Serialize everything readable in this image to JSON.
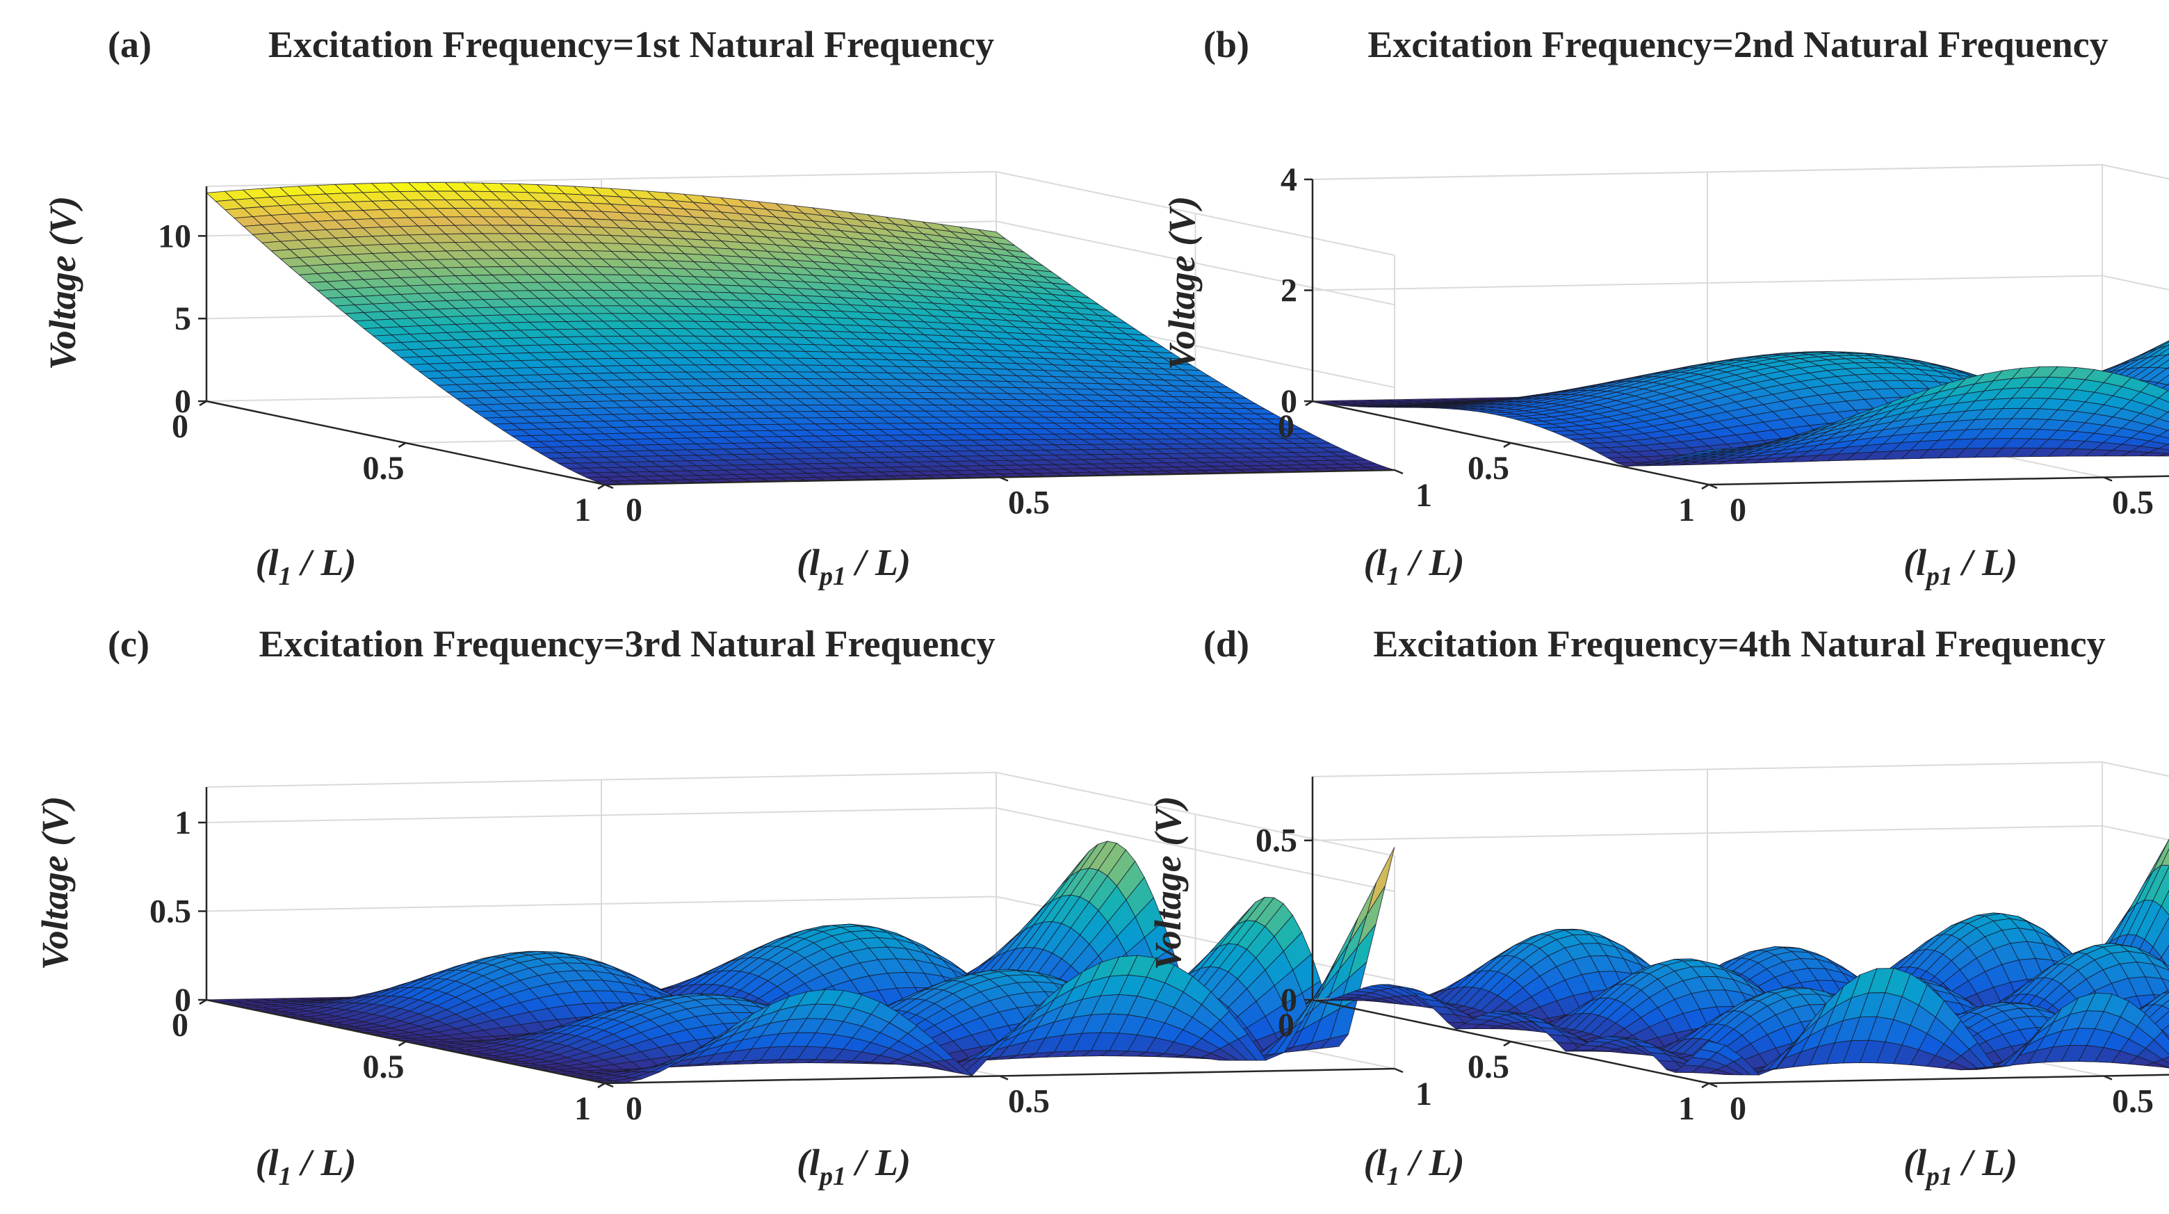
{
  "chart_data": [
    {
      "type": "surface3d",
      "panel": "(a)",
      "title": "Excitation Frequency=1st Natural Frequency",
      "zlabel": "Voltage (V)",
      "xlabel": {
        "main": "(l",
        "sub": "1",
        "rest": " / L)"
      },
      "ylabel": {
        "main": "(l",
        "sub": "p1",
        "rest": " / L)"
      },
      "x_ticks": [
        "0",
        "0.5",
        "1"
      ],
      "y_ticks": [
        "0",
        "0.5",
        "1"
      ],
      "z_ticks": [
        "0",
        "5",
        "10"
      ],
      "z_tick_values": [
        0,
        5,
        10
      ],
      "zlim": [
        0,
        13
      ],
      "peak_voltage": 13,
      "mode": 1,
      "grid_n": 44
    },
    {
      "type": "surface3d",
      "panel": "(b)",
      "title": "Excitation Frequency=2nd Natural Frequency",
      "zlabel": "Voltage (V)",
      "xlabel": {
        "main": "(l",
        "sub": "1",
        "rest": " / L)"
      },
      "ylabel": {
        "main": "(l",
        "sub": "p1",
        "rest": " / L)"
      },
      "x_ticks": [
        "0",
        "0.5",
        "1"
      ],
      "y_ticks": [
        "0",
        "0.5",
        "1"
      ],
      "z_ticks": [
        "0",
        "2",
        "4"
      ],
      "z_tick_values": [
        0,
        2,
        4
      ],
      "zlim": [
        0,
        4
      ],
      "peak_voltage": 3.4,
      "mode": 2,
      "grid_n": 44
    },
    {
      "type": "surface3d",
      "panel": "(c)",
      "title": "Excitation Frequency=3rd Natural Frequency",
      "zlabel": "Voltage (V)",
      "xlabel": {
        "main": "(l",
        "sub": "1",
        "rest": " / L)"
      },
      "ylabel": {
        "main": "(l",
        "sub": "p1",
        "rest": " / L)"
      },
      "x_ticks": [
        "0",
        "0.5",
        "1"
      ],
      "y_ticks": [
        "0",
        "0.5",
        "1"
      ],
      "z_ticks": [
        "0",
        "0.5",
        "1"
      ],
      "z_tick_values": [
        0,
        0.5,
        1
      ],
      "zlim": [
        0,
        1.2
      ],
      "peak_voltage": 1.25,
      "mode": 3,
      "grid_n": 44
    },
    {
      "type": "surface3d",
      "panel": "(d)",
      "title": "Excitation Frequency=4th Natural Frequency",
      "zlabel": "Voltage (V)",
      "xlabel": {
        "main": "(l",
        "sub": "1",
        "rest": " / L)"
      },
      "ylabel": {
        "main": "(l",
        "sub": "p1",
        "rest": " / L)"
      },
      "x_ticks": [
        "0",
        "0.5",
        "1"
      ],
      "y_ticks": [
        "0",
        "0.5",
        "1"
      ],
      "z_ticks": [
        "0",
        "0.5"
      ],
      "z_tick_values": [
        0,
        0.5
      ],
      "zlim": [
        0,
        0.7
      ],
      "peak_voltage": 0.72,
      "mode": 4,
      "grid_n": 48
    }
  ]
}
